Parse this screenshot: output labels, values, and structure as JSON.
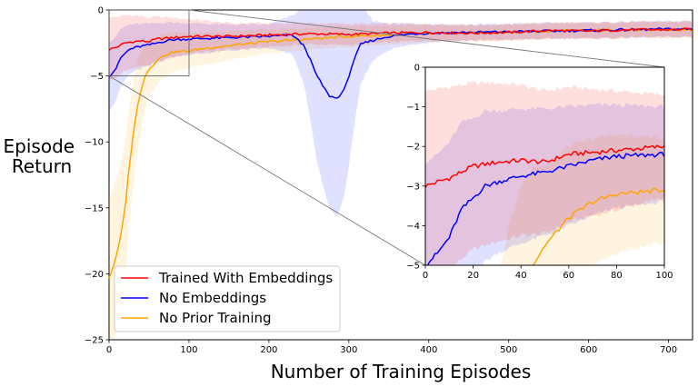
{
  "chart_data": {
    "type": "line",
    "xlabel": "Number of Training Episodes",
    "ylabel": "Episode\nReturn",
    "xlim": [
      0,
      730
    ],
    "ylim": [
      -25,
      0
    ],
    "xticks": [
      0,
      100,
      200,
      300,
      400,
      500,
      600,
      700
    ],
    "yticks": [
      0,
      -5,
      -10,
      -15,
      -20,
      -25
    ],
    "legend_position": "lower-left",
    "grid": false,
    "series": [
      {
        "name": "Trained With Embeddings",
        "color": "#ff0000",
        "x": [
          0,
          10,
          20,
          30,
          40,
          50,
          60,
          70,
          80,
          90,
          100,
          150,
          200,
          250,
          300,
          350,
          400,
          450,
          500,
          550,
          600,
          650,
          700,
          730
        ],
        "y": [
          -3.0,
          -2.8,
          -2.5,
          -2.4,
          -2.35,
          -2.4,
          -2.2,
          -2.15,
          -2.1,
          -2.05,
          -2.0,
          -2.0,
          -1.9,
          -1.8,
          -1.85,
          -1.75,
          -1.7,
          -1.75,
          -1.7,
          -1.55,
          -1.6,
          -1.5,
          -1.5,
          -1.45
        ],
        "band": [
          2.4,
          2.3,
          2.1,
          2.0,
          1.9,
          1.8,
          1.7,
          1.6,
          1.5,
          1.4,
          1.3,
          1.0,
          0.9,
          0.8,
          0.8,
          0.7,
          0.6,
          0.6,
          0.6,
          0.6,
          0.6,
          0.6,
          0.6,
          0.6
        ]
      },
      {
        "name": "No Embeddings",
        "color": "#0000ff",
        "x": [
          0,
          5,
          10,
          15,
          20,
          25,
          30,
          40,
          50,
          60,
          70,
          80,
          100,
          150,
          200,
          230,
          245,
          260,
          275,
          285,
          295,
          305,
          315,
          330,
          350,
          380,
          400,
          450,
          500,
          550,
          600,
          650,
          700,
          730
        ],
        "y": [
          -5.0,
          -4.7,
          -4.3,
          -3.6,
          -3.3,
          -3.0,
          -2.9,
          -2.75,
          -2.65,
          -2.5,
          -2.35,
          -2.25,
          -2.2,
          -2.1,
          -2.0,
          -1.9,
          -2.8,
          -5.0,
          -6.5,
          -6.7,
          -6.0,
          -4.0,
          -2.6,
          -2.3,
          -2.0,
          -1.8,
          -1.75,
          -1.7,
          -1.65,
          -1.6,
          -1.55,
          -1.5,
          -1.45,
          -1.45
        ],
        "band": [
          2.6,
          2.5,
          2.4,
          2.2,
          2.0,
          1.9,
          1.8,
          1.7,
          1.6,
          1.5,
          1.4,
          1.3,
          1.2,
          1.0,
          0.9,
          1.5,
          3.0,
          6.5,
          8.5,
          9.0,
          8.0,
          5.5,
          3.0,
          1.5,
          1.0,
          0.8,
          0.7,
          0.6,
          0.6,
          0.6,
          0.6,
          0.6,
          0.6,
          0.6
        ]
      },
      {
        "name": "No Prior Training",
        "color": "#ffa500",
        "x": [
          0,
          5,
          10,
          15,
          20,
          25,
          30,
          35,
          40,
          45,
          50,
          60,
          70,
          80,
          90,
          100,
          120,
          150,
          200,
          250,
          300,
          350,
          400,
          450,
          500,
          550,
          600,
          650,
          700,
          730
        ],
        "y": [
          -20.3,
          -19.5,
          -18.5,
          -17.0,
          -15.0,
          -12.0,
          -9.5,
          -7.5,
          -6.0,
          -5.0,
          -4.5,
          -3.8,
          -3.4,
          -3.2,
          -3.15,
          -3.1,
          -2.9,
          -2.7,
          -2.4,
          -2.2,
          -2.0,
          -1.9,
          -1.8,
          -1.75,
          -1.7,
          -1.6,
          -1.55,
          -1.5,
          -1.5,
          -1.5
        ],
        "band": [
          6.0,
          6.0,
          5.8,
          5.5,
          5.0,
          4.5,
          4.0,
          3.5,
          3.0,
          2.5,
          2.0,
          1.8,
          1.6,
          1.5,
          1.4,
          1.3,
          1.2,
          1.1,
          0.9,
          0.8,
          0.8,
          0.7,
          0.7,
          0.6,
          0.6,
          0.6,
          0.6,
          0.6,
          0.6,
          0.6
        ]
      }
    ],
    "inset": {
      "xlim": [
        0,
        100
      ],
      "ylim": [
        -5,
        0
      ],
      "xticks": [
        0,
        20,
        40,
        60,
        80,
        100
      ],
      "yticks": [
        0,
        -1,
        -2,
        -3,
        -4,
        -5
      ]
    }
  }
}
